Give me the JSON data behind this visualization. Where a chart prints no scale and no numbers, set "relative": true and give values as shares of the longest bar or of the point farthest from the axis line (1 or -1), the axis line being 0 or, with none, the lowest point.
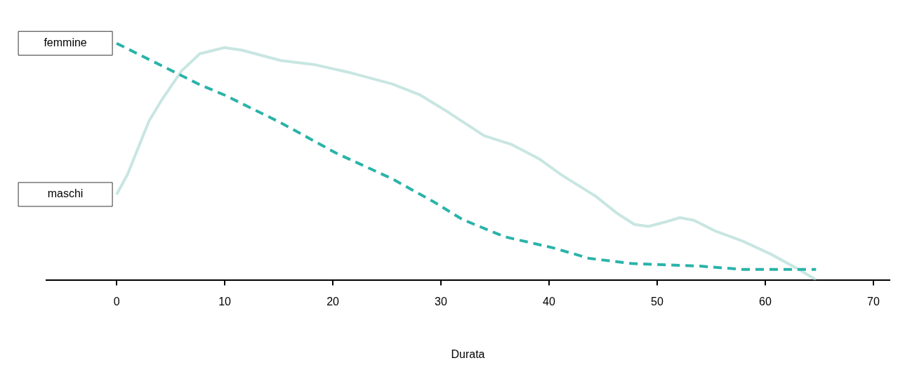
{
  "chart_data": {
    "type": "line",
    "relative": true,
    "xlabel": "Durata",
    "xlim": [
      -6.5,
      71.5
    ],
    "xticks": [
      0,
      10,
      20,
      30,
      40,
      50,
      60,
      70
    ],
    "grid": false,
    "legend": false,
    "marker": "none",
    "series": [
      {
        "name": "femmine",
        "color": "#2ab3a9",
        "line_style": "dashed",
        "x": [
          0,
          7.7,
          10,
          15.2,
          20.3,
          25.5,
          29.4,
          32,
          35.9,
          40.4,
          43.7,
          47.6,
          54,
          57.9,
          64.7
        ],
        "values": [
          1,
          0.825,
          0.781,
          0.664,
          0.536,
          0.427,
          0.328,
          0.255,
          0.182,
          0.135,
          0.091,
          0.069,
          0.058,
          0.044,
          0.044
        ]
      },
      {
        "name": "maschi",
        "color": "#c8e6e2",
        "line_style": "solid",
        "x": [
          0,
          1,
          3,
          4.1,
          6,
          7.7,
          10,
          11.6,
          15.2,
          18.4,
          21.6,
          25.5,
          28.1,
          30.7,
          34,
          36.5,
          39.1,
          41.1,
          44.3,
          46.3,
          47.9,
          49.2,
          50.8,
          52.1,
          53.4,
          55.3,
          57.9,
          60.5,
          63.1,
          64.7
        ],
        "values": [
          0.361,
          0.445,
          0.672,
          0.755,
          0.883,
          0.956,
          0.982,
          0.971,
          0.927,
          0.909,
          0.876,
          0.828,
          0.781,
          0.708,
          0.609,
          0.573,
          0.511,
          0.445,
          0.354,
          0.281,
          0.234,
          0.226,
          0.245,
          0.263,
          0.252,
          0.208,
          0.164,
          0.109,
          0.044,
          0
        ]
      }
    ]
  }
}
